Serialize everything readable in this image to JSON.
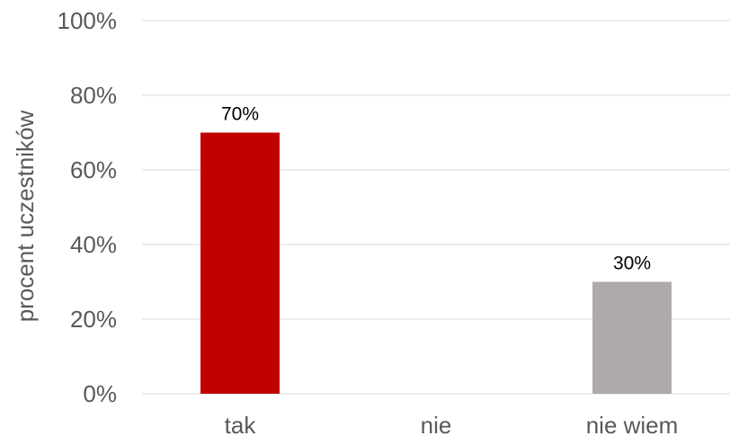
{
  "chart_data": {
    "type": "bar",
    "title": "",
    "xlabel": "",
    "ylabel": "procent uczestników",
    "categories": [
      "tak",
      "nie",
      "nie wiem"
    ],
    "values": [
      70,
      0,
      30
    ],
    "data_labels": [
      "70%",
      "",
      "30%"
    ],
    "bar_colors": [
      "#c00000",
      "#c00000",
      "#aeaaaa"
    ],
    "ylim": [
      0,
      100
    ],
    "y_ticks": [
      0,
      20,
      40,
      60,
      80,
      100
    ],
    "y_tick_labels": [
      "0%",
      "20%",
      "40%",
      "60%",
      "80%",
      "100%"
    ],
    "grid": true,
    "legend": "none"
  }
}
